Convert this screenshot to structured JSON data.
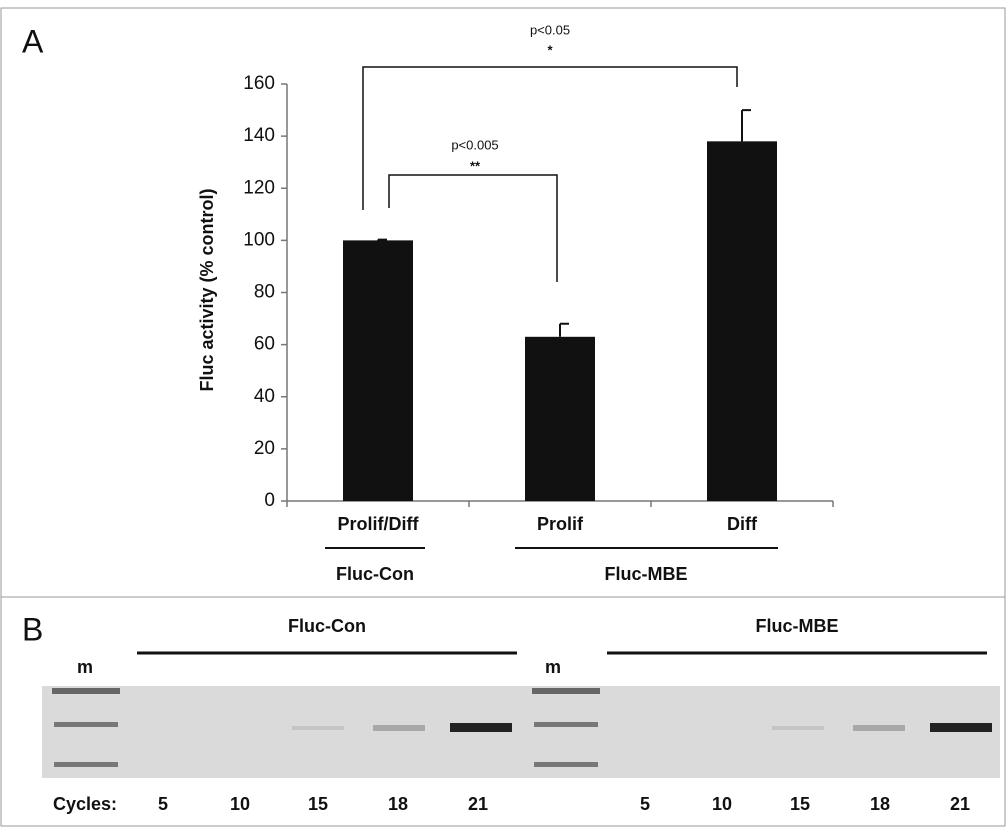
{
  "chart_data": {
    "type": "bar",
    "panel_label": "A",
    "ylabel": "Fluc activity (% control)",
    "categories": [
      "Prolif/Diff",
      "Prolif",
      "Diff"
    ],
    "values": [
      100,
      63,
      138
    ],
    "errors": [
      0.3,
      5,
      12
    ],
    "color": "#111111",
    "groups": [
      {
        "label": "Fluc-Con"
      },
      {
        "label": "Fluc-MBE"
      }
    ],
    "significance": [
      {
        "p_label": "p<0.005",
        "stars": "**"
      },
      {
        "p_label": "p<0.05",
        "stars": "*"
      }
    ],
    "ylim": [
      0,
      160
    ],
    "yticks": [
      0,
      20,
      40,
      60,
      80,
      100,
      120,
      140,
      160
    ]
  },
  "gel": {
    "panel_label": "B",
    "groups": [
      "Fluc-Con",
      "Fluc-MBE"
    ],
    "marker_label": "m",
    "cycles_label": "Cycles:",
    "cycles": [
      5,
      10,
      15,
      18,
      21
    ]
  }
}
